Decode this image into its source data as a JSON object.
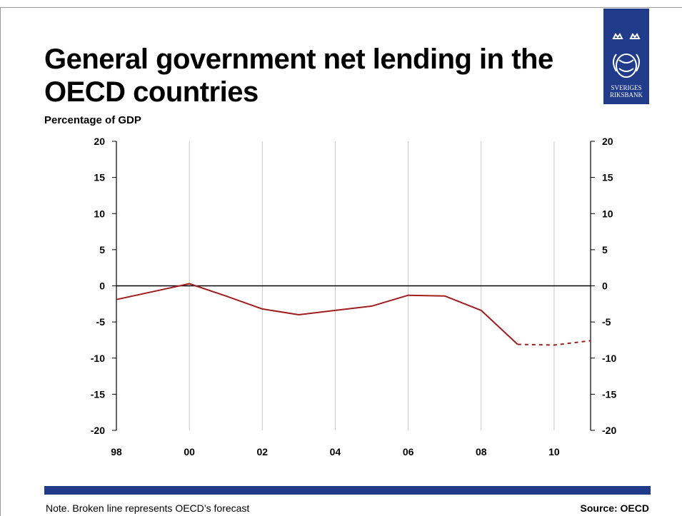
{
  "title": "General government net lending in the OECD countries",
  "subtitle": "Percentage of GDP",
  "logo": {
    "line1": "SVERIGES",
    "line2": "RIKSBANK",
    "icon": "riksbank-crest-icon",
    "color": "#1f3b8a"
  },
  "note": "Note. Broken line represents OECD’s forecast",
  "source": "Source: OECD",
  "chart_data": {
    "type": "line",
    "title": "General government net lending in the OECD countries",
    "ylabel": "Percentage of GDP",
    "xlabel": "",
    "xlim": [
      1998,
      2011
    ],
    "ylim": [
      -20,
      20
    ],
    "x_tick_labels": [
      {
        "x": 1998,
        "label": "98"
      },
      {
        "x": 2000,
        "label": "00"
      },
      {
        "x": 2002,
        "label": "02"
      },
      {
        "x": 2004,
        "label": "04"
      },
      {
        "x": 2006,
        "label": "06"
      },
      {
        "x": 2008,
        "label": "08"
      },
      {
        "x": 2010,
        "label": "10"
      }
    ],
    "y_ticks": [
      -20,
      -15,
      -10,
      -5,
      0,
      5,
      10,
      15,
      20
    ],
    "grid": "vertical",
    "series": [
      {
        "color": "#a01e1e",
        "style": "solid",
        "x": [
          1998,
          2000,
          2001,
          2002,
          2003,
          2004,
          2005,
          2006,
          2007,
          2008,
          2009
        ],
        "values": [
          -1.9,
          0.3,
          -1.4,
          -3.2,
          -4.0,
          -3.4,
          -2.8,
          -1.3,
          -1.4,
          -3.4,
          -8.1
        ]
      },
      {
        "color": "#a01e1e",
        "style": "dashed",
        "x": [
          2009,
          2010,
          2011
        ],
        "values": [
          -8.1,
          -8.2,
          -7.6
        ]
      }
    ]
  }
}
